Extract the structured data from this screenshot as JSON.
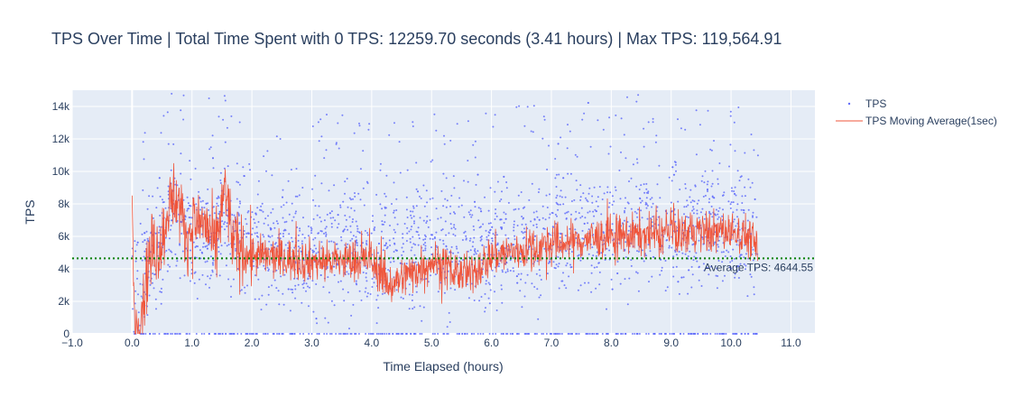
{
  "chart_data": {
    "type": "scatter",
    "title": "TPS Over Time | Total Time Spent with 0 TPS: 12259.70 seconds (3.41 hours) | Max TPS: 119,564.91",
    "xlabel": "Time Elapsed (hours)",
    "ylabel": "TPS",
    "xlim": [
      -1.0,
      11.4
    ],
    "ylim": [
      0,
      15000
    ],
    "x_ticks": [
      -1.0,
      0.0,
      1.0,
      2.0,
      3.0,
      4.0,
      5.0,
      6.0,
      7.0,
      8.0,
      9.0,
      10.0,
      11.0
    ],
    "x_tick_labels": [
      "−1.0",
      "0.0",
      "1.0",
      "2.0",
      "3.0",
      "4.0",
      "5.0",
      "6.0",
      "7.0",
      "8.0",
      "9.0",
      "10.0",
      "11.0"
    ],
    "y_ticks": [
      0,
      2000,
      4000,
      6000,
      8000,
      10000,
      12000,
      14000
    ],
    "y_tick_labels": [
      "0",
      "2k",
      "4k",
      "6k",
      "8k",
      "10k",
      "12k",
      "14k"
    ],
    "grid": true,
    "legend_position": "top-right",
    "series": [
      {
        "name": "TPS",
        "kind": "markers",
        "color": "#636efa",
        "approx_profile": {
          "x_range": [
            0.0,
            10.45
          ],
          "note_levels": [
            [
              0.0,
              3000
            ],
            [
              0.5,
              5500
            ],
            [
              0.7,
              7500
            ],
            [
              1.0,
              6000
            ],
            [
              1.5,
              6500
            ],
            [
              2.0,
              5500
            ],
            [
              3.0,
              5000
            ],
            [
              4.0,
              5200
            ],
            [
              5.0,
              5000
            ],
            [
              6.0,
              5500
            ],
            [
              7.0,
              6000
            ],
            [
              8.0,
              6200
            ],
            [
              9.0,
              6500
            ],
            [
              10.0,
              6500
            ],
            [
              10.45,
              6000
            ]
          ],
          "spread_max": 15000
        }
      },
      {
        "name": "TPS Moving Average(1sec)",
        "kind": "line",
        "color": "#ef553b",
        "approx_profile": [
          [
            0.0,
            7500
          ],
          [
            0.05,
            0
          ],
          [
            0.15,
            1500
          ],
          [
            0.3,
            5000
          ],
          [
            0.5,
            5500
          ],
          [
            0.6,
            8000
          ],
          [
            0.75,
            8500
          ],
          [
            0.9,
            6000
          ],
          [
            1.0,
            6500
          ],
          [
            1.2,
            7000
          ],
          [
            1.4,
            5000
          ],
          [
            1.55,
            9000
          ],
          [
            1.7,
            5500
          ],
          [
            2.0,
            4800
          ],
          [
            3.0,
            4500
          ],
          [
            4.0,
            4500
          ],
          [
            4.3,
            3000
          ],
          [
            5.0,
            4500
          ],
          [
            5.6,
            3500
          ],
          [
            6.0,
            4800
          ],
          [
            7.0,
            5500
          ],
          [
            8.0,
            6000
          ],
          [
            9.0,
            6200
          ],
          [
            10.0,
            6300
          ],
          [
            10.3,
            6000
          ],
          [
            10.45,
            5200
          ]
        ]
      }
    ],
    "reference_line": {
      "y": 4644.55,
      "style": "dotted",
      "color": "#008000",
      "label": "Average TPS: 4644.55"
    }
  }
}
